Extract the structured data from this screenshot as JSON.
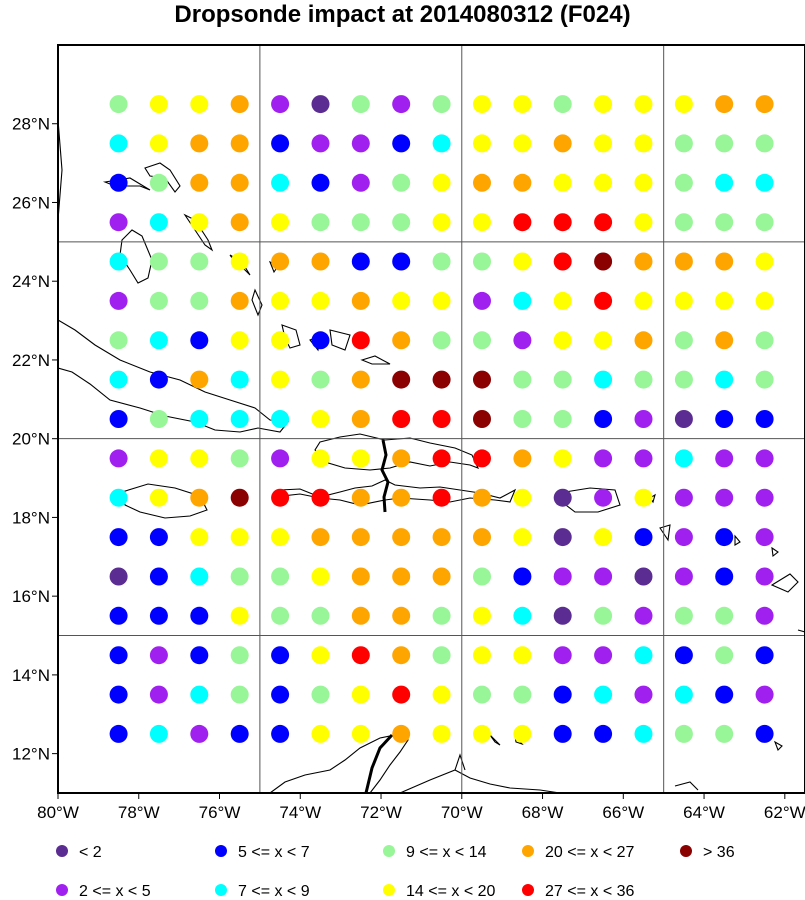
{
  "title": "Dropsonde impact at 2014080312 (F024)",
  "chart_data": {
    "type": "scatter",
    "map_region": {
      "lon_range": [
        -80,
        -61.5
      ],
      "lat_range": [
        11,
        30
      ]
    },
    "grid_lines": {
      "lon": [
        -75,
        -70,
        -65
      ],
      "lat": [
        15,
        20,
        25
      ]
    },
    "x_ticks": [
      {
        "value": -80,
        "label": "80°W"
      },
      {
        "value": -78,
        "label": "78°W"
      },
      {
        "value": -76,
        "label": "76°W"
      },
      {
        "value": -74,
        "label": "74°W"
      },
      {
        "value": -72,
        "label": "72°W"
      },
      {
        "value": -70,
        "label": "70°W"
      },
      {
        "value": -68,
        "label": "68°W"
      },
      {
        "value": -66,
        "label": "66°W"
      },
      {
        "value": -64,
        "label": "64°W"
      },
      {
        "value": -62,
        "label": "62°W"
      }
    ],
    "y_ticks": [
      {
        "value": 12,
        "label": "12°N"
      },
      {
        "value": 14,
        "label": "14°N"
      },
      {
        "value": 16,
        "label": "16°N"
      },
      {
        "value": 18,
        "label": "18°N"
      },
      {
        "value": 20,
        "label": "20°N"
      },
      {
        "value": 22,
        "label": "22°N"
      },
      {
        "value": 24,
        "label": "24°N"
      },
      {
        "value": 26,
        "label": "26°N"
      },
      {
        "value": 28,
        "label": "28°N"
      }
    ],
    "categories": [
      {
        "key": "A",
        "label": "<  2",
        "color": "#5b2c91"
      },
      {
        "key": "B",
        "label": "2 <= x <  5",
        "color": "#a020f0"
      },
      {
        "key": "C",
        "label": "5 <= x <  7",
        "color": "#0000ff"
      },
      {
        "key": "D",
        "label": "7 <= x <  9",
        "color": "#00ffff"
      },
      {
        "key": "E",
        "label": "9 <= x < 14",
        "color": "#98f598"
      },
      {
        "key": "F",
        "label": "14 <= x < 20",
        "color": "#ffff00"
      },
      {
        "key": "G",
        "label": "20 <= x < 27",
        "color": "#ffa500"
      },
      {
        "key": "H",
        "label": "27 <= x < 36",
        "color": "#ff0000"
      },
      {
        "key": "I",
        "label": "> 36",
        "color": "#8b0000"
      }
    ],
    "legend_order": [
      "A",
      "C",
      "E",
      "G",
      "I",
      "B",
      "D",
      "F",
      "H"
    ],
    "point_lons": [
      -78.5,
      -77.5,
      -76.5,
      -75.5,
      -74.5,
      -73.5,
      -72.5,
      -71.5,
      -70.5,
      -69.5,
      -68.5,
      -67.5,
      -66.5,
      -65.5,
      -64.5,
      -63.5,
      -62.5
    ],
    "point_lats": [
      28.5,
      27.5,
      26.5,
      25.5,
      24.5,
      23.5,
      22.5,
      21.5,
      20.5,
      19.5,
      18.5,
      17.5,
      16.5,
      15.5,
      14.5,
      13.5,
      12.5
    ],
    "rows": [
      "EFFGBAEBEFFEFFFGG",
      "DFGGCBBCDFFGFFEEE",
      "CEGGDCBEFGGFFFEDD",
      "BDFGFEEEFFHHHFEEE",
      "DEEFGGCCEEFHIGGGF",
      "BEEGFFGFFBDFHFFFF",
      "EDCFFCHGEEBFFGEGE",
      "DCGDFEGIIIEEDEEDE",
      "CEDDDFGHHIEECBACC",
      "BFFEBFFGHHGFBBDBB",
      "DFGIHHGGHGFABFBBB",
      "CCFFFGGGGGFAFCBCB",
      "ACDEEFGGGECBBABCB",
      "CCCFEEGGEFDAEBEEB",
      "CBCECFHGEFFBBDCEC",
      "CBDECEFHFEECDBDCB",
      "CDBCCFFGFFFCCDEEC"
    ]
  }
}
